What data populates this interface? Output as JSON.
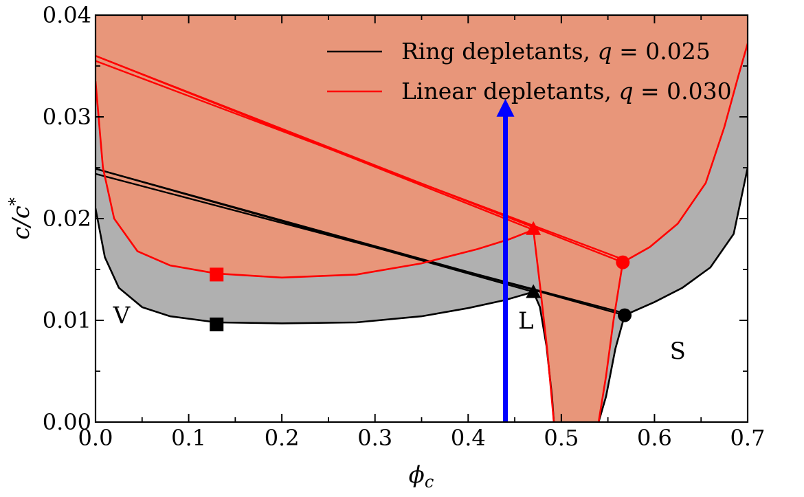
{
  "chart_data": {
    "type": "line",
    "xlabel": "ϕc",
    "ylabel": "c/c*",
    "xlim": [
      0.0,
      0.7
    ],
    "ylim": [
      0.0,
      0.04
    ],
    "x_ticks": [
      "0.0",
      "0.1",
      "0.2",
      "0.3",
      "0.4",
      "0.5",
      "0.6",
      "0.7"
    ],
    "y_ticks": [
      "0.00",
      "0.01",
      "0.02",
      "0.03",
      "0.04"
    ],
    "legend_position": "top-right",
    "colors": {
      "ring": "#000000",
      "linear": "#ff0000",
      "ring_fill": "#b0b0b0",
      "linear_fill": "#e8967a",
      "arrow": "#0000ff"
    },
    "region_labels": [
      {
        "text": "V",
        "x": 0.028,
        "y": 0.0097
      },
      {
        "text": "L",
        "x": 0.462,
        "y": 0.0092
      },
      {
        "text": "S",
        "x": 0.625,
        "y": 0.0062
      }
    ],
    "series": [
      {
        "name": "Ring depletants",
        "q_label": "q",
        "q_value": "= 0.025",
        "color": "#000000",
        "binodal_left": [
          [
            0.0,
            0.021
          ],
          [
            0.01,
            0.0162
          ],
          [
            0.025,
            0.0132
          ],
          [
            0.05,
            0.0113
          ],
          [
            0.08,
            0.0104
          ],
          [
            0.13,
            0.0098
          ],
          [
            0.2,
            0.0097
          ],
          [
            0.28,
            0.0098
          ],
          [
            0.35,
            0.0104
          ],
          [
            0.4,
            0.0112
          ],
          [
            0.44,
            0.012
          ],
          [
            0.47,
            0.0128
          ]
        ],
        "binodal_right": [
          [
            0.477,
            0.0113
          ],
          [
            0.484,
            0.0075
          ],
          [
            0.49,
            0.0025
          ],
          [
            0.492,
            0.0
          ]
        ],
        "solid_left": [
          [
            0.54,
            0.0
          ],
          [
            0.548,
            0.0025
          ],
          [
            0.558,
            0.0072
          ],
          [
            0.568,
            0.0105
          ]
        ],
        "solid_right": [
          [
            0.568,
            0.0105
          ],
          [
            0.6,
            0.0118
          ],
          [
            0.63,
            0.0132
          ],
          [
            0.66,
            0.0152
          ],
          [
            0.685,
            0.0185
          ],
          [
            0.7,
            0.025
          ]
        ],
        "tie_lines": [
          [
            [
              0.0,
              0.0249
            ],
            [
              0.568,
              0.0105
            ]
          ],
          [
            [
              0.0,
              0.0244
            ],
            [
              0.568,
              0.0107
            ]
          ],
          [
            [
              0.0,
              0.0249
            ],
            [
              0.47,
              0.0128
            ]
          ]
        ],
        "markers": [
          {
            "shape": "square",
            "x": 0.13,
            "y": 0.0096
          },
          {
            "shape": "triangle",
            "x": 0.47,
            "y": 0.0128
          },
          {
            "shape": "circle",
            "x": 0.568,
            "y": 0.0105
          }
        ]
      },
      {
        "name": "Linear depletants",
        "q_label": "q",
        "q_value": "= 0.030",
        "color": "#ff0000",
        "binodal_left": [
          [
            0.0,
            0.0335
          ],
          [
            0.008,
            0.025
          ],
          [
            0.02,
            0.02
          ],
          [
            0.045,
            0.0168
          ],
          [
            0.08,
            0.0154
          ],
          [
            0.13,
            0.0146
          ],
          [
            0.2,
            0.0142
          ],
          [
            0.28,
            0.0145
          ],
          [
            0.35,
            0.0156
          ],
          [
            0.41,
            0.017
          ],
          [
            0.445,
            0.018
          ],
          [
            0.47,
            0.0189
          ]
        ],
        "binodal_right": [
          [
            0.47,
            0.0189
          ],
          [
            0.477,
            0.0135
          ],
          [
            0.485,
            0.007
          ],
          [
            0.49,
            0.002
          ],
          [
            0.492,
            0.0
          ]
        ],
        "solid_left": [
          [
            0.54,
            0.0
          ],
          [
            0.548,
            0.0045
          ],
          [
            0.556,
            0.01
          ],
          [
            0.566,
            0.0157
          ]
        ],
        "solid_right": [
          [
            0.566,
            0.0157
          ],
          [
            0.595,
            0.0172
          ],
          [
            0.625,
            0.0195
          ],
          [
            0.655,
            0.0235
          ],
          [
            0.675,
            0.029
          ],
          [
            0.69,
            0.034
          ],
          [
            0.7,
            0.0372
          ]
        ],
        "tie_lines": [
          [
            [
              0.0,
              0.036
            ],
            [
              0.566,
              0.0157
            ]
          ],
          [
            [
              0.0,
              0.0355
            ],
            [
              0.566,
              0.016
            ]
          ],
          [
            [
              0.0,
              0.036
            ],
            [
              0.47,
              0.0189
            ]
          ]
        ],
        "markers": [
          {
            "shape": "square",
            "x": 0.13,
            "y": 0.0145
          },
          {
            "shape": "triangle",
            "x": 0.47,
            "y": 0.019
          },
          {
            "shape": "circle",
            "x": 0.566,
            "y": 0.0157
          }
        ]
      }
    ],
    "arrow": {
      "x": 0.44,
      "y_start": 0.0,
      "y_end": 0.0315
    }
  }
}
